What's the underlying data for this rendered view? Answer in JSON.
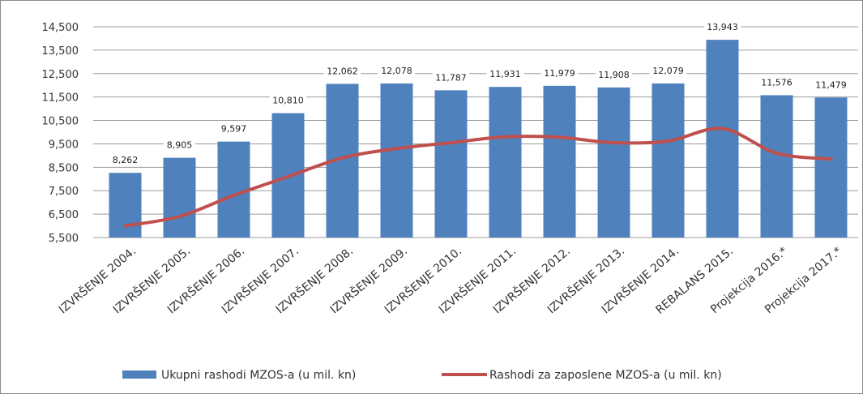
{
  "chart_data": {
    "type": "bar",
    "categories": [
      "IZVRŠENJE 2004.",
      "IZVRŠENJE 2005.",
      "IZVRŠENJE 2006.",
      "IZVRŠENJE 2007.",
      "IZVRŠENJE 2008.",
      "IZVRŠENJE 2009.",
      "IZVRŠENJE 2010.",
      "IZVRŠENJE 2011.",
      "IZVRŠENJE 2012.",
      "IZVRŠENJE 2013.",
      "IZVRŠENJE 2014.",
      "REBALANS 2015.",
      "Projekcija 2016.*",
      "Projekcija 2017.*"
    ],
    "series": [
      {
        "name": "Ukupni rashodi MZOS-a (u mil. kn)",
        "type": "bar",
        "color": "#4f81bd",
        "values": [
          8262,
          8905,
          9597,
          10810,
          12062,
          12078,
          11787,
          11931,
          11979,
          11908,
          12079,
          13943,
          11576,
          11479
        ],
        "labels": [
          "8,262",
          "8,905",
          "9,597",
          "10,810",
          "12,062",
          "12,078",
          "11,787",
          "11,931",
          "11,979",
          "11,908",
          "12,079",
          "13,943",
          "11,576",
          "11,479"
        ]
      },
      {
        "name": "Rashodi za zaposlene MZOS-a (u mil. kn)",
        "type": "line",
        "color": "#c0504d",
        "values": [
          6000,
          6400,
          7300,
          8100,
          8900,
          9300,
          9550,
          9800,
          9780,
          9550,
          9620,
          10150,
          9100,
          8850
        ]
      }
    ],
    "y_ticks": [
      "5,500",
      "6,500",
      "7,500",
      "8,500",
      "9,500",
      "10,500",
      "11,500",
      "12,500",
      "13,500",
      "14,500"
    ],
    "ylim": [
      5500,
      14500
    ],
    "grid": true,
    "legend_position": "bottom",
    "title": "",
    "xlabel": "",
    "ylabel": ""
  }
}
